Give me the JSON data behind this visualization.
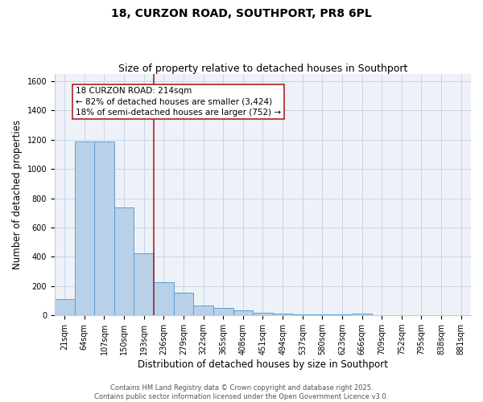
{
  "title": "18, CURZON ROAD, SOUTHPORT, PR8 6PL",
  "subtitle": "Size of property relative to detached houses in Southport",
  "xlabel": "Distribution of detached houses by size in Southport",
  "ylabel": "Number of detached properties",
  "categories": [
    "21sqm",
    "64sqm",
    "107sqm",
    "150sqm",
    "193sqm",
    "236sqm",
    "279sqm",
    "322sqm",
    "365sqm",
    "408sqm",
    "451sqm",
    "494sqm",
    "537sqm",
    "580sqm",
    "623sqm",
    "666sqm",
    "709sqm",
    "752sqm",
    "795sqm",
    "838sqm",
    "881sqm"
  ],
  "values": [
    110,
    1190,
    1190,
    740,
    425,
    225,
    155,
    65,
    50,
    35,
    15,
    10,
    7,
    7,
    4,
    10,
    0,
    0,
    0,
    0,
    0
  ],
  "bar_color": "#b8d0e8",
  "bar_edge_color": "#5a9fd4",
  "vline_color": "#aa2222",
  "annotation_text": "18 CURZON ROAD: 214sqm\n← 82% of detached houses are smaller (3,424)\n18% of semi-detached houses are larger (752) →",
  "annotation_box_color": "white",
  "annotation_box_edgecolor": "#aa2222",
  "ylim": [
    0,
    1650
  ],
  "yticks": [
    0,
    200,
    400,
    600,
    800,
    1000,
    1200,
    1400,
    1600
  ],
  "grid_color": "#c8d4e8",
  "background_color": "#eef2f8",
  "footer_text": "Contains HM Land Registry data © Crown copyright and database right 2025.\nContains public sector information licensed under the Open Government Licence v3.0.",
  "title_fontsize": 10,
  "subtitle_fontsize": 9,
  "tick_fontsize": 7,
  "label_fontsize": 8.5,
  "footer_fontsize": 6,
  "annotation_fontsize": 7.5
}
